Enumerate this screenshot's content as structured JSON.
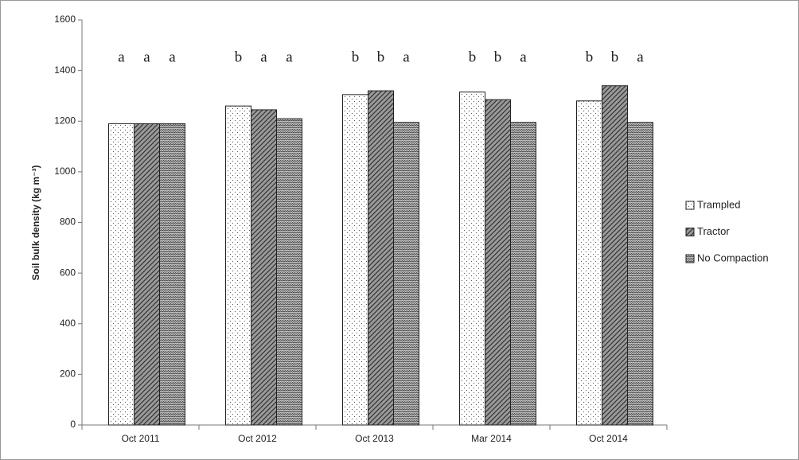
{
  "chart_data": {
    "type": "bar",
    "y_label": "Soil bulk density (kg m⁻³)",
    "categories": [
      "Oct 2011",
      "Oct 2012",
      "Oct 2013",
      "Mar 2014",
      "Oct 2014"
    ],
    "series": [
      {
        "name": "Trampled",
        "color": "#ffffff",
        "pattern": "dots",
        "values": [
          1190,
          1260,
          1305,
          1315,
          1280
        ],
        "letters": [
          "a",
          "b",
          "b",
          "b",
          "b"
        ]
      },
      {
        "name": "Tractor",
        "color": "#9a9a9a",
        "pattern": "hatch",
        "values": [
          1190,
          1245,
          1320,
          1285,
          1340
        ],
        "letters": [
          "a",
          "a",
          "b",
          "b",
          "b"
        ]
      },
      {
        "name": "No Compaction",
        "color": "#c8c8c8",
        "pattern": "zigzag",
        "values": [
          1190,
          1210,
          1195,
          1195,
          1195
        ],
        "letters": [
          "a",
          "a",
          "a",
          "a",
          "a"
        ]
      }
    ],
    "ylim": [
      0,
      1600
    ],
    "yticks": [
      0,
      200,
      400,
      600,
      800,
      1000,
      1200,
      1400,
      1600
    ],
    "legend": "right"
  }
}
